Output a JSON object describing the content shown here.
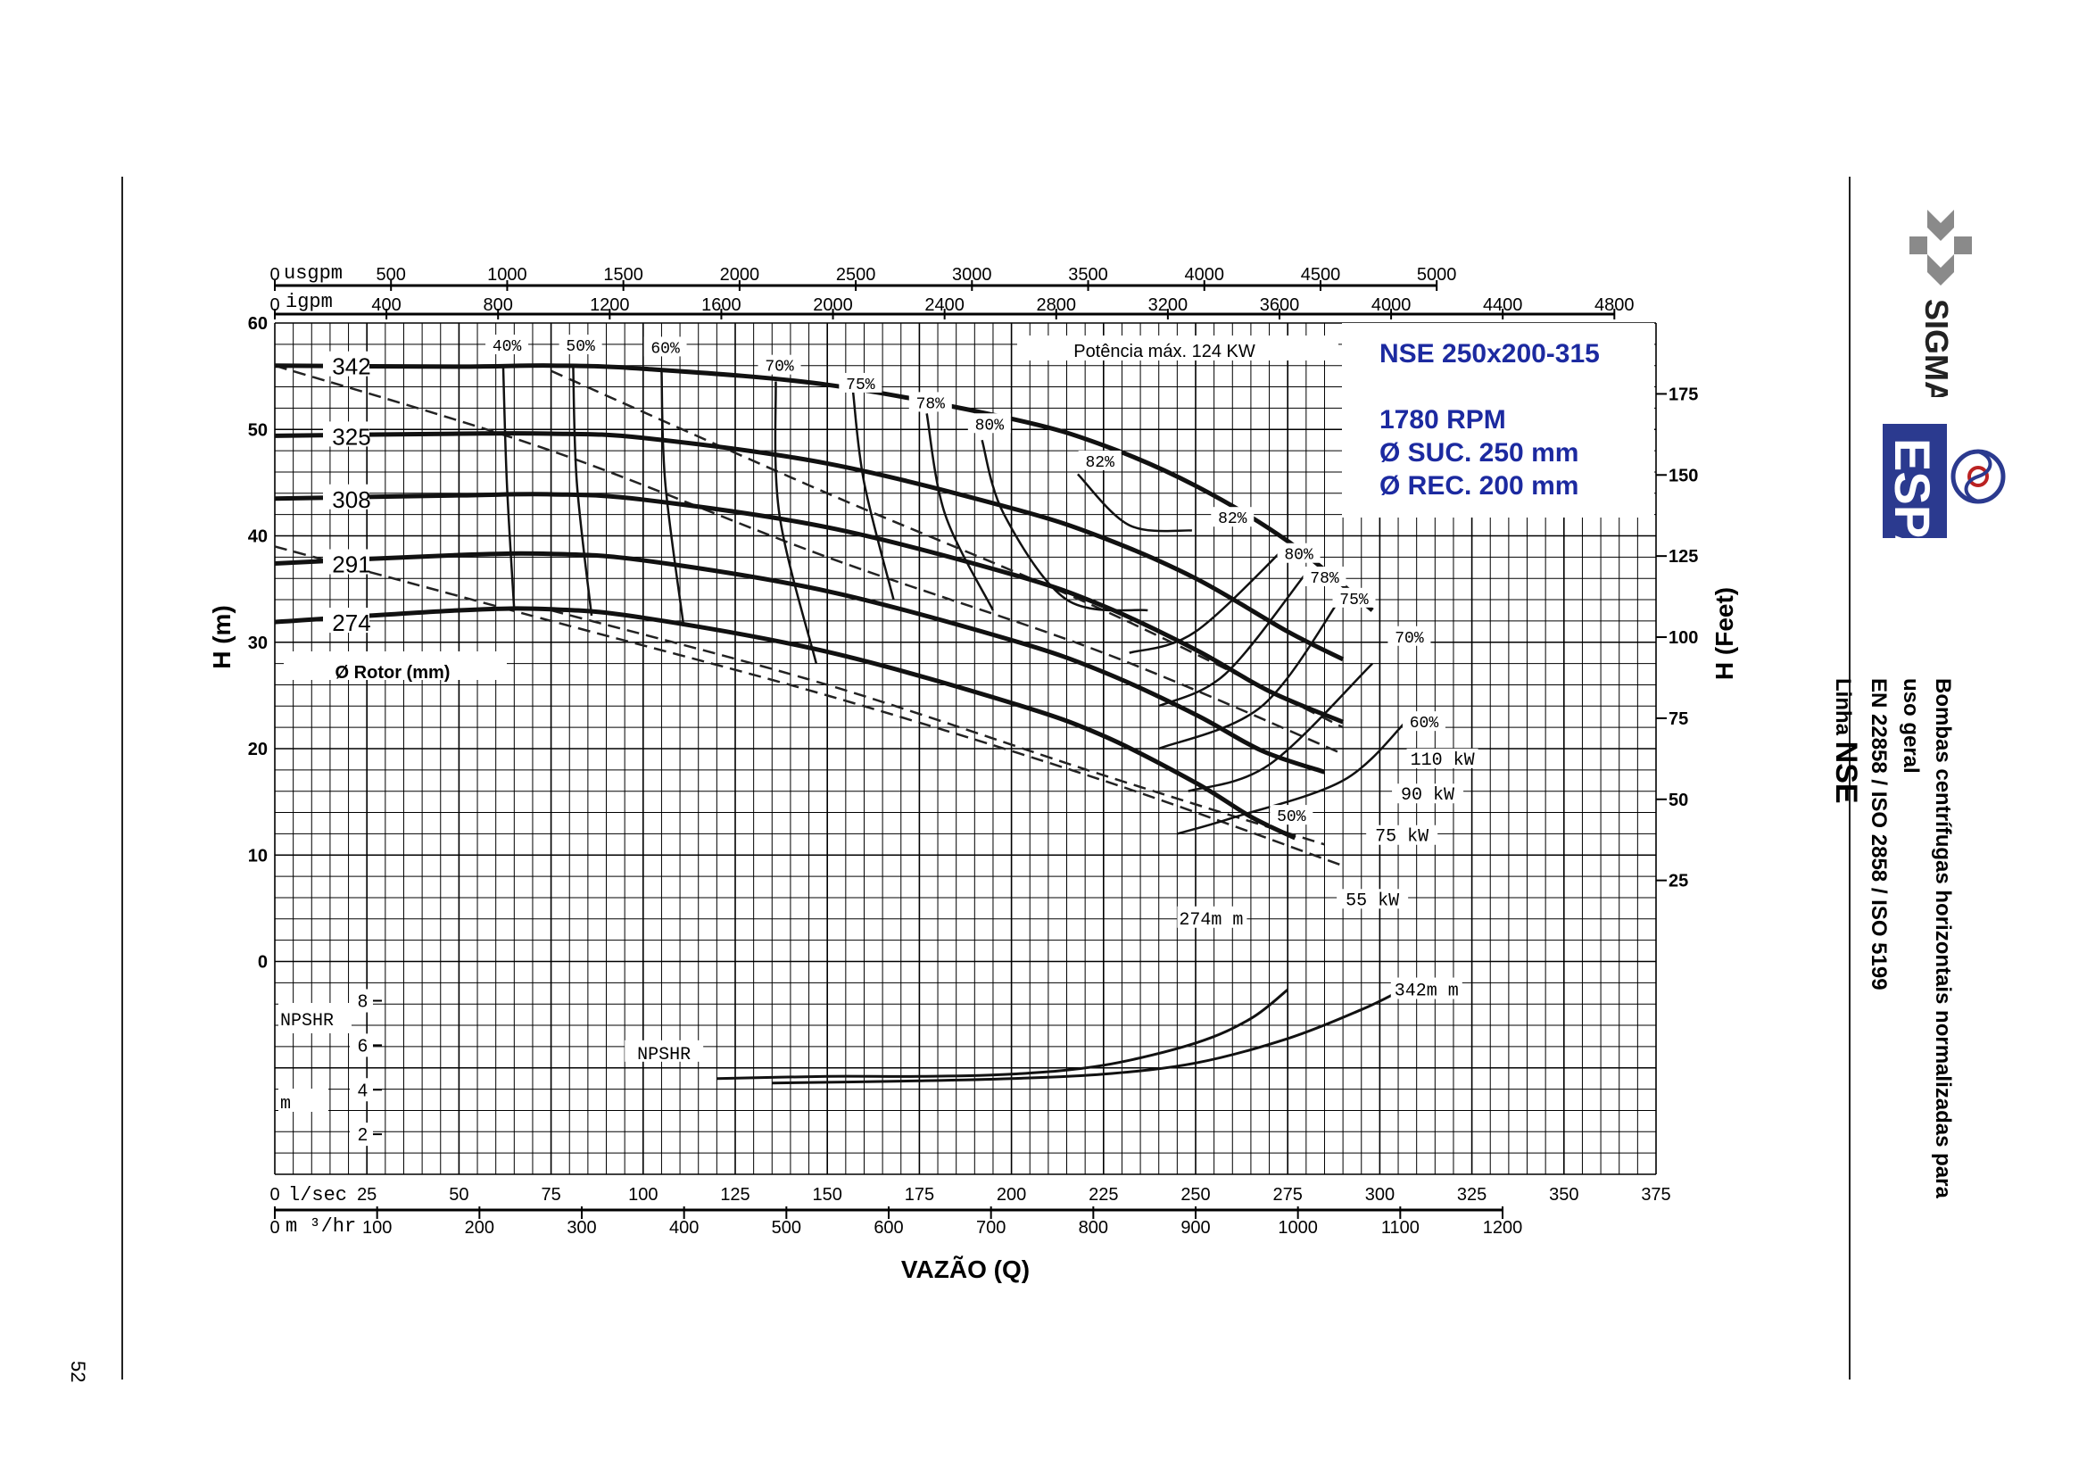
{
  "page": {
    "page_number": "52",
    "side_title": "Bombas centrífugas horizontais normalizadas para uso geral",
    "side_norms": "EN 22858 / ISO 2858 / ISO 5199",
    "side_line_prefix": "Linha",
    "side_line_name": "NSE",
    "logo_sigma": "SIGMA",
    "logo_espa": "ESPA"
  },
  "chart_data": {
    "type": "line",
    "title": "NSE 250x200-315",
    "specs": [
      "1780 RPM",
      "Ø SUC. 250 mm",
      "Ø REC. 200 mm"
    ],
    "max_power_label": "Potência máx. 124 KW",
    "xlabel": "VAZÃO (Q)",
    "ylabel": "H (m)",
    "ylabel_right": "H (Feet)",
    "rotor_label": "Ø Rotor (mm)",
    "npshr_label": "NPSHR",
    "npshr_unit": "m",
    "x_axes": {
      "lsec": {
        "label": "l/sec",
        "ticks": [
          0,
          25,
          50,
          75,
          100,
          125,
          150,
          175,
          200,
          225,
          250,
          275,
          300,
          325,
          350,
          375
        ],
        "range": [
          0,
          375
        ]
      },
      "m3hr": {
        "label": "m ³/hr",
        "ticks": [
          0,
          100,
          200,
          300,
          400,
          500,
          600,
          700,
          800,
          900,
          1000,
          1100,
          1200
        ]
      },
      "usgpm": {
        "label": "usgpm",
        "ticks": [
          0,
          500,
          1000,
          1500,
          2000,
          2500,
          3000,
          3500,
          4000,
          4500,
          5000
        ]
      },
      "igpm": {
        "label": "igpm",
        "ticks": [
          0,
          400,
          800,
          1200,
          1600,
          2000,
          2400,
          2800,
          3200,
          3600,
          4000,
          4400,
          4800
        ]
      }
    },
    "y_axis": {
      "ticks": [
        0,
        10,
        20,
        30,
        40,
        50,
        60
      ],
      "range": [
        -20,
        60
      ]
    },
    "y_axis_right": {
      "ticks": [
        25,
        50,
        75,
        100,
        125,
        150,
        175
      ]
    },
    "npshr_ticks": [
      2,
      4,
      6,
      8
    ],
    "series": [
      {
        "name": "342",
        "x": [
          0,
          50,
          75,
          100,
          150,
          200,
          225,
          250,
          275,
          298
        ],
        "y": [
          56,
          55.9,
          56,
          55.7,
          54.2,
          51,
          48.5,
          44.7,
          39.5,
          33
        ]
      },
      {
        "name": "325",
        "x": [
          0,
          50,
          75,
          100,
          150,
          200,
          225,
          250,
          275,
          290
        ],
        "y": [
          49.4,
          49.6,
          49.6,
          49.2,
          46.8,
          42.6,
          39.8,
          36,
          31,
          28.4
        ]
      },
      {
        "name": "308",
        "x": [
          0,
          50,
          75,
          100,
          150,
          200,
          225,
          250,
          270,
          290
        ],
        "y": [
          43.5,
          43.8,
          43.9,
          43.4,
          40.8,
          36.4,
          33.4,
          29.3,
          25.4,
          22.5
        ]
      },
      {
        "name": "291",
        "x": [
          0,
          50,
          75,
          100,
          150,
          200,
          225,
          250,
          268,
          285
        ],
        "y": [
          37.4,
          38.2,
          38.3,
          37.7,
          34.8,
          30.2,
          27.2,
          23.2,
          19.8,
          17.8
        ]
      },
      {
        "name": "274",
        "x": [
          0,
          50,
          75,
          100,
          150,
          200,
          225,
          250,
          265,
          277
        ],
        "y": [
          31.9,
          33,
          33.1,
          32.3,
          29.1,
          24.3,
          21.2,
          16.8,
          13.6,
          11.6
        ]
      }
    ],
    "efficiency_labels": [
      "40%",
      "50%",
      "60%",
      "70%",
      "75%",
      "78%",
      "80%",
      "82%",
      "82%",
      "80%",
      "78%",
      "75%",
      "70%",
      "60%",
      "50%"
    ],
    "power_labels": [
      "110 kW",
      "90 kW",
      "75 kW",
      "55 kW"
    ],
    "npshr_series": [
      {
        "name": "274m m",
        "x": [
          120,
          150,
          175,
          200,
          225,
          250,
          265,
          275
        ],
        "y": [
          4.5,
          4.6,
          4.6,
          4.7,
          5.1,
          6.1,
          7.2,
          8.5
        ]
      },
      {
        "name": "342m m",
        "x": [
          135,
          175,
          200,
          225,
          250,
          275,
          295,
          305
        ],
        "y": [
          4.3,
          4.4,
          4.5,
          4.7,
          5.2,
          6.3,
          7.6,
          8.4
        ]
      }
    ]
  }
}
